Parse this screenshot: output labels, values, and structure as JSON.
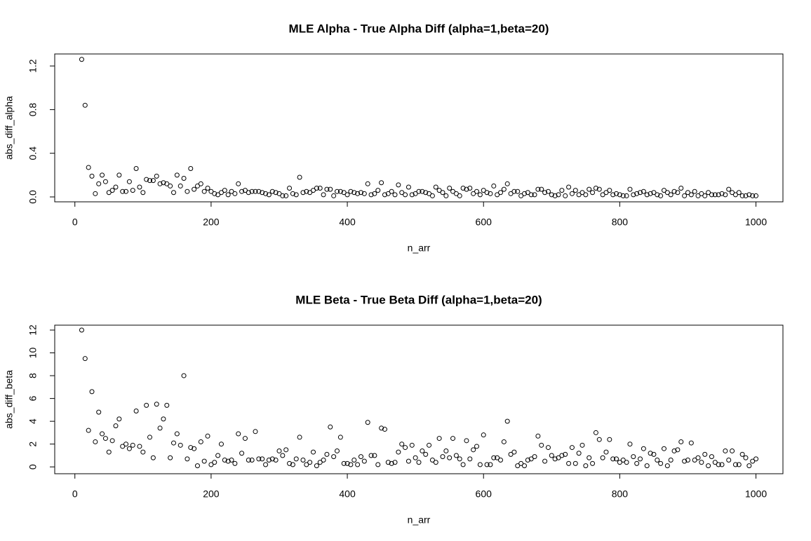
{
  "chart_data": [
    {
      "type": "scatter",
      "title": "MLE Alpha - True Alpha Diff (alpha=1,beta=20)",
      "x_label": "n_arr",
      "y_label": "abs_diff_alpha",
      "color": "#000000",
      "x": [
        10,
        15,
        20,
        25,
        30,
        35,
        40,
        45,
        50,
        55,
        60,
        65,
        70,
        75,
        80,
        85,
        90,
        95,
        100,
        105,
        110,
        115,
        120,
        125,
        130,
        135,
        140,
        145,
        150,
        155,
        160,
        165,
        170,
        175,
        180,
        185,
        190,
        195,
        200,
        205,
        210,
        215,
        220,
        225,
        230,
        235,
        240,
        245,
        250,
        255,
        260,
        265,
        270,
        275,
        280,
        285,
        290,
        295,
        300,
        305,
        310,
        315,
        320,
        325,
        330,
        335,
        340,
        345,
        350,
        355,
        360,
        365,
        370,
        375,
        380,
        385,
        390,
        395,
        400,
        405,
        410,
        415,
        420,
        425,
        430,
        435,
        440,
        445,
        450,
        455,
        460,
        465,
        470,
        475,
        480,
        485,
        490,
        495,
        500,
        505,
        510,
        515,
        520,
        525,
        530,
        535,
        540,
        545,
        550,
        555,
        560,
        565,
        570,
        575,
        580,
        585,
        590,
        595,
        600,
        605,
        610,
        615,
        620,
        625,
        630,
        635,
        640,
        645,
        650,
        655,
        660,
        665,
        670,
        675,
        680,
        685,
        690,
        695,
        700,
        705,
        710,
        715,
        720,
        725,
        730,
        735,
        740,
        745,
        750,
        755,
        760,
        765,
        770,
        775,
        780,
        785,
        790,
        795,
        800,
        805,
        810,
        815,
        820,
        825,
        830,
        835,
        840,
        845,
        850,
        855,
        860,
        865,
        870,
        875,
        880,
        885,
        890,
        895,
        900,
        905,
        910,
        915,
        920,
        925,
        930,
        935,
        940,
        945,
        950,
        955,
        960,
        965,
        970,
        975,
        980,
        985,
        990,
        995,
        1000
      ],
      "values": [
        1.26,
        0.84,
        0.27,
        0.19,
        0.03,
        0.12,
        0.2,
        0.14,
        0.04,
        0.06,
        0.09,
        0.2,
        0.05,
        0.05,
        0.14,
        0.06,
        0.26,
        0.09,
        0.04,
        0.16,
        0.15,
        0.15,
        0.19,
        0.12,
        0.13,
        0.12,
        0.1,
        0.04,
        0.2,
        0.1,
        0.17,
        0.05,
        0.26,
        0.07,
        0.1,
        0.12,
        0.05,
        0.08,
        0.05,
        0.03,
        0.02,
        0.04,
        0.06,
        0.02,
        0.05,
        0.03,
        0.12,
        0.05,
        0.06,
        0.04,
        0.05,
        0.05,
        0.05,
        0.04,
        0.03,
        0.02,
        0.05,
        0.04,
        0.03,
        0.01,
        0.01,
        0.08,
        0.03,
        0.02,
        0.18,
        0.04,
        0.05,
        0.04,
        0.06,
        0.08,
        0.08,
        0.02,
        0.07,
        0.07,
        0.01,
        0.05,
        0.05,
        0.04,
        0.02,
        0.05,
        0.04,
        0.03,
        0.04,
        0.03,
        0.12,
        0.02,
        0.03,
        0.06,
        0.13,
        0.02,
        0.03,
        0.05,
        0.02,
        0.11,
        0.04,
        0.02,
        0.09,
        0.02,
        0.03,
        0.05,
        0.05,
        0.04,
        0.03,
        0.01,
        0.09,
        0.06,
        0.04,
        0.01,
        0.08,
        0.05,
        0.03,
        0.01,
        0.08,
        0.07,
        0.08,
        0.03,
        0.05,
        0.02,
        0.06,
        0.04,
        0.03,
        0.1,
        0.02,
        0.04,
        0.07,
        0.12,
        0.03,
        0.05,
        0.05,
        0.01,
        0.03,
        0.04,
        0.02,
        0.02,
        0.07,
        0.07,
        0.04,
        0.05,
        0.02,
        0.01,
        0.02,
        0.06,
        0.01,
        0.09,
        0.03,
        0.06,
        0.02,
        0.04,
        0.02,
        0.07,
        0.04,
        0.08,
        0.07,
        0.02,
        0.04,
        0.06,
        0.02,
        0.03,
        0.02,
        0.01,
        0.01,
        0.07,
        0.02,
        0.03,
        0.04,
        0.05,
        0.02,
        0.03,
        0.04,
        0.02,
        0.01,
        0.06,
        0.04,
        0.02,
        0.05,
        0.04,
        0.08,
        0.01,
        0.04,
        0.02,
        0.05,
        0.01,
        0.03,
        0.01,
        0.04,
        0.02,
        0.02,
        0.02,
        0.03,
        0.02,
        0.07,
        0.04,
        0.02,
        0.04,
        0.01,
        0.01,
        0.02,
        0.01,
        0.01
      ],
      "xlim": [
        -29.6,
        1039.6
      ],
      "xticks": [
        0,
        200,
        400,
        600,
        800,
        1000
      ],
      "ylim": [
        -0.045,
        1.31
      ],
      "yticks": [
        {
          "value": 0,
          "label": "0.0"
        },
        {
          "value": 0.4,
          "label": "0.4"
        },
        {
          "value": 0.8,
          "label": "0.8"
        },
        {
          "value": 1.2,
          "label": "1.2"
        }
      ]
    },
    {
      "type": "scatter",
      "title": "MLE Beta - True Beta Diff (alpha=1,beta=20)",
      "x_label": "n_arr",
      "y_label": "abs_diff_beta",
      "color": "#000000",
      "x": [
        10,
        15,
        20,
        25,
        30,
        35,
        40,
        45,
        50,
        55,
        60,
        65,
        70,
        75,
        80,
        85,
        90,
        95,
        100,
        105,
        110,
        115,
        120,
        125,
        130,
        135,
        140,
        145,
        150,
        155,
        160,
        165,
        170,
        175,
        180,
        185,
        190,
        195,
        200,
        205,
        210,
        215,
        220,
        225,
        230,
        235,
        240,
        245,
        250,
        255,
        260,
        265,
        270,
        275,
        280,
        285,
        290,
        295,
        300,
        305,
        310,
        315,
        320,
        325,
        330,
        335,
        340,
        345,
        350,
        355,
        360,
        365,
        370,
        375,
        380,
        385,
        390,
        395,
        400,
        405,
        410,
        415,
        420,
        425,
        430,
        435,
        440,
        445,
        450,
        455,
        460,
        465,
        470,
        475,
        480,
        485,
        490,
        495,
        500,
        505,
        510,
        515,
        520,
        525,
        530,
        535,
        540,
        545,
        550,
        555,
        560,
        565,
        570,
        575,
        580,
        585,
        590,
        595,
        600,
        605,
        610,
        615,
        620,
        625,
        630,
        635,
        640,
        645,
        650,
        655,
        660,
        665,
        670,
        675,
        680,
        685,
        690,
        695,
        700,
        705,
        710,
        715,
        720,
        725,
        730,
        735,
        740,
        745,
        750,
        755,
        760,
        765,
        770,
        775,
        780,
        785,
        790,
        795,
        800,
        805,
        810,
        815,
        820,
        825,
        830,
        835,
        840,
        845,
        850,
        855,
        860,
        865,
        870,
        875,
        880,
        885,
        890,
        895,
        900,
        905,
        910,
        915,
        920,
        925,
        930,
        935,
        940,
        945,
        950,
        955,
        960,
        965,
        970,
        975,
        980,
        985,
        990,
        995,
        1000
      ],
      "values": [
        12.0,
        9.5,
        3.2,
        6.6,
        2.2,
        4.8,
        2.9,
        2.5,
        1.3,
        2.3,
        3.6,
        4.2,
        1.8,
        2.0,
        1.6,
        1.9,
        4.9,
        1.8,
        1.3,
        5.4,
        2.6,
        0.8,
        5.5,
        3.4,
        4.2,
        5.4,
        0.8,
        2.1,
        2.9,
        1.9,
        8.0,
        0.7,
        1.7,
        1.6,
        0.1,
        2.2,
        0.5,
        2.7,
        0.2,
        0.4,
        1.0,
        2.0,
        0.6,
        0.5,
        0.6,
        0.3,
        2.9,
        1.2,
        2.5,
        0.6,
        0.6,
        3.1,
        0.7,
        0.7,
        0.2,
        0.6,
        0.7,
        0.6,
        1.4,
        1.0,
        1.5,
        0.3,
        0.2,
        0.7,
        2.6,
        0.6,
        0.2,
        0.4,
        1.3,
        0.1,
        0.4,
        0.6,
        1.1,
        3.5,
        0.9,
        1.4,
        2.6,
        0.3,
        0.3,
        0.2,
        0.6,
        0.2,
        0.9,
        0.5,
        3.9,
        1.0,
        1.0,
        0.2,
        3.4,
        3.3,
        0.4,
        0.3,
        0.4,
        1.3,
        2.0,
        1.7,
        0.5,
        1.9,
        0.8,
        0.4,
        1.4,
        1.1,
        1.9,
        0.6,
        0.4,
        2.5,
        0.9,
        1.4,
        0.8,
        2.5,
        1.0,
        0.7,
        0.2,
        2.3,
        0.7,
        1.5,
        1.8,
        0.2,
        2.8,
        0.2,
        0.2,
        0.8,
        0.8,
        0.6,
        2.2,
        4.0,
        1.1,
        1.3,
        0.1,
        0.3,
        0.1,
        0.6,
        0.7,
        0.9,
        2.7,
        1.9,
        0.5,
        1.7,
        1.0,
        0.7,
        0.8,
        1.0,
        1.1,
        0.3,
        1.7,
        0.3,
        1.2,
        1.9,
        0.1,
        0.8,
        0.3,
        3.0,
        2.4,
        0.8,
        1.3,
        2.4,
        0.7,
        0.7,
        0.4,
        0.6,
        0.4,
        2.0,
        0.9,
        0.3,
        0.7,
        1.6,
        0.1,
        1.2,
        1.1,
        0.6,
        0.3,
        1.6,
        0.1,
        0.6,
        1.4,
        1.5,
        2.2,
        0.5,
        0.6,
        2.1,
        0.6,
        0.8,
        0.4,
        1.1,
        0.1,
        0.9,
        0.4,
        0.2,
        0.2,
        1.4,
        0.6,
        1.4,
        0.2,
        0.2,
        1.1,
        0.8,
        0.1,
        0.5,
        0.7
      ],
      "xlim": [
        -29.6,
        1039.6
      ],
      "xticks": [
        0,
        200,
        400,
        600,
        800,
        1000
      ],
      "ylim": [
        -0.6,
        12.43
      ],
      "yticks": [
        0,
        2,
        4,
        6,
        8,
        10,
        12
      ]
    }
  ]
}
